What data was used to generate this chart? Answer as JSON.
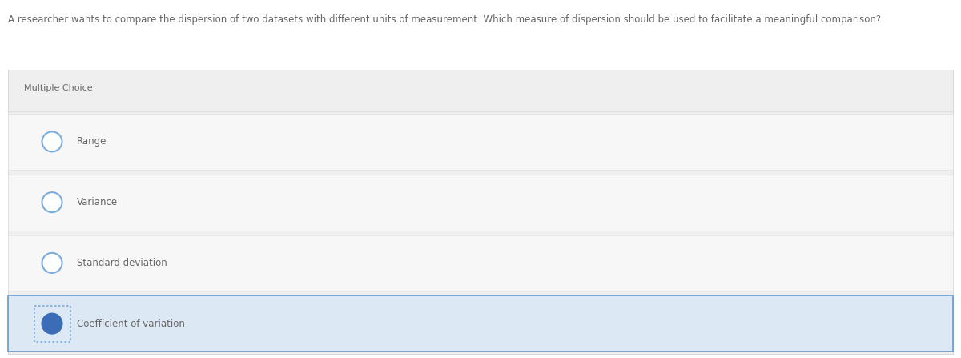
{
  "question": "A researcher wants to compare the dispersion of two datasets with different units of measurement. Which measure of dispersion should be used to facilitate a meaningful comparison?",
  "question_fontsize": 8.5,
  "question_color": "#666666",
  "bg_color": "#ffffff",
  "panel_bg_color": "#efefef",
  "option_bg_color": "#f7f7f7",
  "option_selected_bg_color": "#dde8f5",
  "panel_border_color": "#cccccc",
  "option_border_color": "#dddddd",
  "option_selected_border_color": "#6699cc",
  "section_label": "Multiple Choice",
  "section_label_fontsize": 8.0,
  "section_label_color": "#666666",
  "options": [
    "Range",
    "Variance",
    "Standard deviation",
    "Coefficient of variation"
  ],
  "selected_index": 3,
  "option_text_color": "#666666",
  "option_text_fontsize": 8.5,
  "radio_color_unselected_edge": "#7aacdc",
  "radio_color_selected_fill": "#3a6db5",
  "radio_color_selected_edge": "#3a6db5",
  "dotted_border_color": "#7aacdc"
}
